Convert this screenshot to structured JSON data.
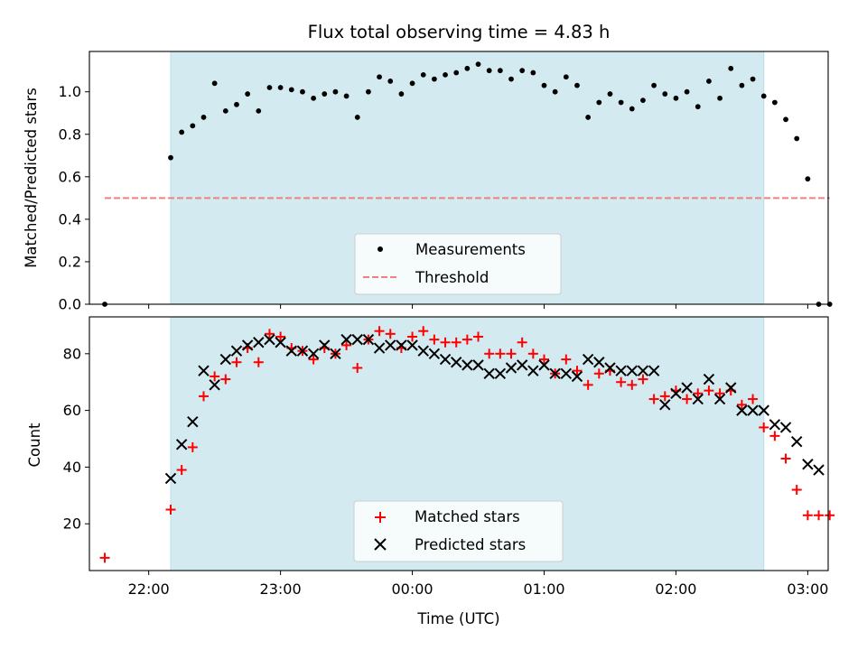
{
  "chart_data": [
    {
      "type": "scatter",
      "title": "Flux total observing time = 4.83 h",
      "ylabel": "Matched/Predicted stars",
      "xlabel": "",
      "ylim": [
        0,
        1.19
      ],
      "yticks": [
        0.0,
        0.2,
        0.4,
        0.6,
        0.8,
        1.0
      ],
      "ytick_labels": [
        "0.0",
        "0.2",
        "0.4",
        "0.6",
        "0.8",
        "1.0"
      ],
      "xlim_hours": [
        21.55,
        3.1
      ],
      "xtick_labels": [],
      "observing_window": {
        "start": "22:10",
        "end": "02:40",
        "color": "#d3ebf0"
      },
      "threshold": {
        "name": "Threshold",
        "value": 0.5,
        "color": "#f08080",
        "style": "dashed"
      },
      "legend": {
        "position": "lower center",
        "entries": [
          "Measurements",
          "Threshold"
        ]
      },
      "series": [
        {
          "name": "Measurements",
          "color": "#000000",
          "marker": "dot",
          "time": [
            "21:40",
            "22:10",
            "22:15",
            "22:20",
            "22:25",
            "22:30",
            "22:35",
            "22:40",
            "22:45",
            "22:50",
            "22:55",
            "23:00",
            "23:05",
            "23:10",
            "23:15",
            "23:20",
            "23:25",
            "23:30",
            "23:35",
            "23:40",
            "23:45",
            "23:50",
            "23:55",
            "00:00",
            "00:05",
            "00:10",
            "00:15",
            "00:20",
            "00:25",
            "00:30",
            "00:35",
            "00:40",
            "00:45",
            "00:50",
            "00:55",
            "01:00",
            "01:05",
            "01:10",
            "01:15",
            "01:20",
            "01:25",
            "01:30",
            "01:35",
            "01:40",
            "01:45",
            "01:50",
            "01:55",
            "02:00",
            "02:05",
            "02:10",
            "02:15",
            "02:20",
            "02:25",
            "02:30",
            "02:35",
            "02:40",
            "02:45",
            "02:50"
          ],
          "time_x": [
            "21:40",
            "22:10",
            "22:15",
            "22:20",
            "22:25",
            "22:30",
            "22:35",
            "22:40",
            "22:45",
            "22:50",
            "22:55",
            "23:00"
          ],
          "values": []
        }
      ]
    },
    {
      "type": "scatter",
      "title": "",
      "ylabel": "Count",
      "xlabel": "Time (UTC)",
      "ylim": [
        3.5,
        93
      ],
      "yticks": [
        20,
        40,
        60,
        80
      ],
      "ytick_labels": [
        "20",
        "40",
        "60",
        "80"
      ],
      "xtick_labels": [
        "22:00",
        "23:00",
        "00:00",
        "01:00",
        "02:00",
        "03:00"
      ],
      "observing_window": {
        "start": "22:10",
        "end": "02:40",
        "color": "#d3ebf0"
      },
      "legend": {
        "position": "lower center",
        "entries": [
          "Matched stars",
          "Predicted stars"
        ]
      },
      "series": [
        {
          "name": "Matched stars",
          "color": "#ff0000",
          "marker": "plus",
          "points": []
        },
        {
          "name": "Predicted stars",
          "color": "#000000",
          "marker": "x",
          "points": []
        }
      ]
    }
  ],
  "measurements": [
    [
      "21:40",
      0.0
    ],
    [
      "22:10",
      0.69
    ],
    [
      "22:15",
      0.81
    ],
    [
      "22:20",
      0.84
    ],
    [
      "22:25",
      0.88
    ],
    [
      "22:30",
      1.04
    ],
    [
      "22:35",
      0.91
    ],
    [
      "22:40",
      0.94
    ],
    [
      "22:45",
      0.99
    ],
    [
      "22:50",
      0.91
    ],
    [
      "22:55",
      1.02
    ],
    [
      "23:00",
      1.02
    ],
    [
      "23:05",
      1.01
    ],
    [
      "23:10",
      1.0
    ],
    [
      "23:15",
      0.97
    ],
    [
      "23:20",
      0.99
    ],
    [
      "23:25",
      1.0
    ],
    [
      "23:30",
      0.98
    ],
    [
      "23:35",
      0.88
    ],
    [
      "23:40",
      1.0
    ],
    [
      "23:45",
      1.07
    ],
    [
      "23:50",
      1.05
    ],
    [
      "23:55",
      0.99
    ],
    [
      "00:00",
      1.04
    ],
    [
      "00:05",
      1.08
    ],
    [
      "00:10",
      1.06
    ],
    [
      "00:15",
      1.08
    ],
    [
      "00:20",
      1.09
    ],
    [
      "00:25",
      1.11
    ],
    [
      "00:30",
      1.13
    ],
    [
      "00:35",
      1.1
    ],
    [
      "00:40",
      1.1
    ],
    [
      "00:45",
      1.06
    ],
    [
      "00:50",
      1.1
    ],
    [
      "00:55",
      1.09
    ],
    [
      "01:00",
      1.03
    ],
    [
      "01:05",
      1.0
    ],
    [
      "01:10",
      1.07
    ],
    [
      "01:15",
      1.03
    ],
    [
      "01:20",
      0.88
    ],
    [
      "01:25",
      0.95
    ],
    [
      "01:30",
      0.99
    ],
    [
      "01:35",
      0.95
    ],
    [
      "01:40",
      0.92
    ],
    [
      "01:45",
      0.96
    ],
    [
      "01:50",
      1.03
    ],
    [
      "01:55",
      0.99
    ],
    [
      "02:00",
      0.97
    ],
    [
      "02:05",
      1.0
    ],
    [
      "02:10",
      0.93
    ],
    [
      "02:15",
      1.05
    ],
    [
      "02:20",
      0.97
    ],
    [
      "02:25",
      1.11
    ],
    [
      "02:30",
      1.03
    ],
    [
      "02:35",
      1.06
    ],
    [
      "02:40",
      0.98
    ],
    [
      "02:45",
      0.95
    ],
    [
      "02:50",
      0.87
    ],
    [
      "02:55",
      0.78
    ],
    [
      "03:00",
      0.59
    ],
    [
      "03:05",
      0.0
    ],
    [
      "03:10",
      0.0
    ]
  ],
  "matched": [
    [
      "21:40",
      8
    ],
    [
      "22:10",
      25
    ],
    [
      "22:15",
      39
    ],
    [
      "22:20",
      47
    ],
    [
      "22:25",
      65
    ],
    [
      "22:30",
      72
    ],
    [
      "22:35",
      71
    ],
    [
      "22:40",
      77
    ],
    [
      "22:45",
      82
    ],
    [
      "22:50",
      77
    ],
    [
      "22:55",
      87
    ],
    [
      "23:00",
      86
    ],
    [
      "23:05",
      82
    ],
    [
      "23:10",
      81
    ],
    [
      "23:15",
      78
    ],
    [
      "23:20",
      82
    ],
    [
      "23:25",
      80
    ],
    [
      "23:30",
      83
    ],
    [
      "23:35",
      75
    ],
    [
      "23:40",
      85
    ],
    [
      "23:45",
      88
    ],
    [
      "23:50",
      87
    ],
    [
      "23:55",
      82
    ],
    [
      "00:00",
      86
    ],
    [
      "00:05",
      88
    ],
    [
      "00:10",
      85
    ],
    [
      "00:15",
      84
    ],
    [
      "00:20",
      84
    ],
    [
      "00:25",
      85
    ],
    [
      "00:30",
      86
    ],
    [
      "00:35",
      80
    ],
    [
      "00:40",
      80
    ],
    [
      "00:45",
      80
    ],
    [
      "00:50",
      84
    ],
    [
      "00:55",
      80
    ],
    [
      "01:00",
      78
    ],
    [
      "01:05",
      73
    ],
    [
      "01:10",
      78
    ],
    [
      "01:15",
      74
    ],
    [
      "01:20",
      69
    ],
    [
      "01:25",
      73
    ],
    [
      "01:30",
      74
    ],
    [
      "01:35",
      70
    ],
    [
      "01:40",
      69
    ],
    [
      "01:45",
      71
    ],
    [
      "01:50",
      64
    ],
    [
      "01:55",
      65
    ],
    [
      "02:00",
      67
    ],
    [
      "02:05",
      64
    ],
    [
      "02:10",
      66
    ],
    [
      "02:15",
      67
    ],
    [
      "02:20",
      66
    ],
    [
      "02:25",
      67
    ],
    [
      "02:30",
      62
    ],
    [
      "02:35",
      64
    ],
    [
      "02:40",
      54
    ],
    [
      "02:45",
      51
    ],
    [
      "02:50",
      43
    ],
    [
      "02:55",
      32
    ],
    [
      "03:00",
      23
    ],
    [
      "03:05",
      23
    ],
    [
      "03:10",
      23
    ]
  ],
  "predicted": [
    [
      "22:10",
      36
    ],
    [
      "22:15",
      48
    ],
    [
      "22:20",
      56
    ],
    [
      "22:25",
      74
    ],
    [
      "22:30",
      69
    ],
    [
      "22:35",
      78
    ],
    [
      "22:40",
      81
    ],
    [
      "22:45",
      83
    ],
    [
      "22:50",
      84
    ],
    [
      "22:55",
      85
    ],
    [
      "23:00",
      84
    ],
    [
      "23:05",
      81
    ],
    [
      "23:10",
      81
    ],
    [
      "23:15",
      80
    ],
    [
      "23:20",
      83
    ],
    [
      "23:25",
      80
    ],
    [
      "23:30",
      85
    ],
    [
      "23:35",
      85
    ],
    [
      "23:40",
      85
    ],
    [
      "23:45",
      82
    ],
    [
      "23:50",
      83
    ],
    [
      "23:55",
      83
    ],
    [
      "00:00",
      83
    ],
    [
      "00:05",
      81
    ],
    [
      "00:10",
      80
    ],
    [
      "00:15",
      78
    ],
    [
      "00:20",
      77
    ],
    [
      "00:25",
      76
    ],
    [
      "00:30",
      76
    ],
    [
      "00:35",
      73
    ],
    [
      "00:40",
      73
    ],
    [
      "00:45",
      75
    ],
    [
      "00:50",
      76
    ],
    [
      "00:55",
      74
    ],
    [
      "01:00",
      76
    ],
    [
      "01:05",
      73
    ],
    [
      "01:10",
      73
    ],
    [
      "01:15",
      72
    ],
    [
      "01:20",
      78
    ],
    [
      "01:25",
      77
    ],
    [
      "01:30",
      75
    ],
    [
      "01:35",
      74
    ],
    [
      "01:40",
      74
    ],
    [
      "01:45",
      74
    ],
    [
      "01:50",
      74
    ],
    [
      "01:55",
      62
    ],
    [
      "02:00",
      66
    ],
    [
      "02:05",
      68
    ],
    [
      "02:10",
      64
    ],
    [
      "02:15",
      71
    ],
    [
      "02:20",
      64
    ],
    [
      "02:25",
      68
    ],
    [
      "02:30",
      60
    ],
    [
      "02:35",
      60
    ],
    [
      "02:40",
      60
    ],
    [
      "02:45",
      55
    ],
    [
      "02:50",
      54
    ],
    [
      "02:55",
      49
    ],
    [
      "03:00",
      41
    ],
    [
      "03:05",
      39
    ]
  ]
}
